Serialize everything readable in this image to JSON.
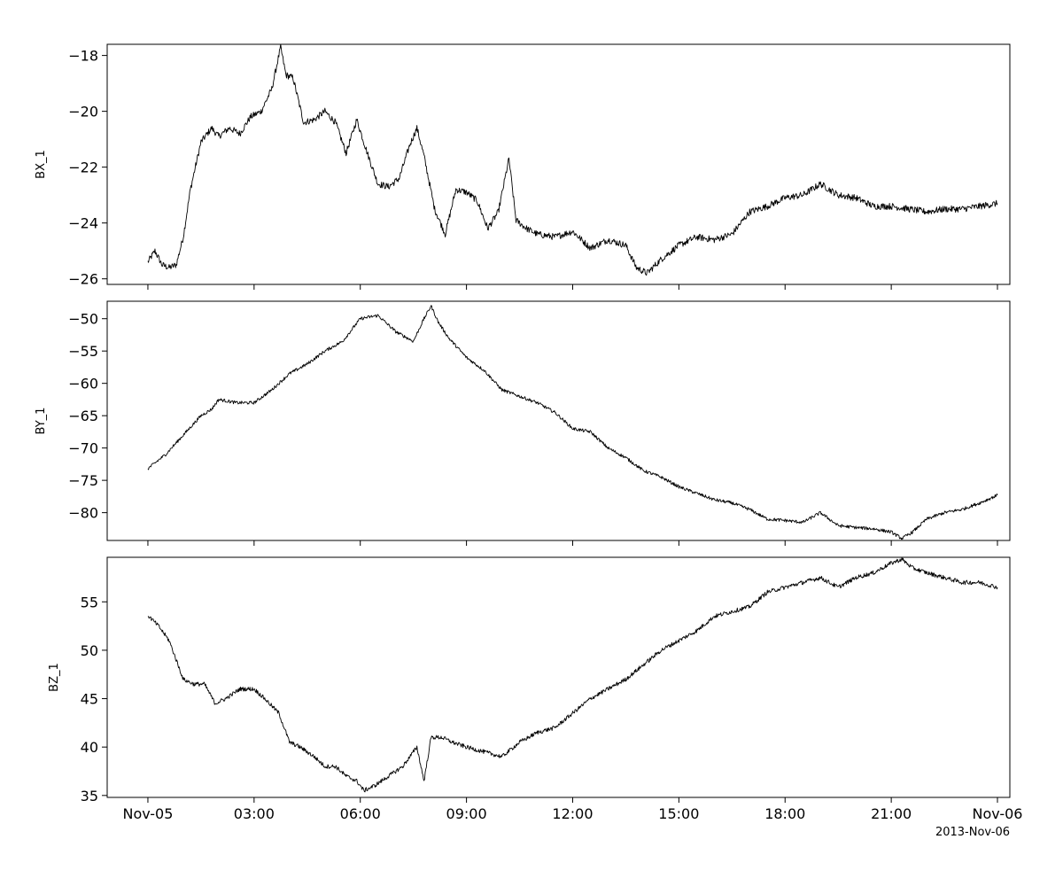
{
  "chart_data": [
    {
      "type": "line",
      "ylabel": "BX_1",
      "ylim": [
        -26.2,
        -17.6
      ],
      "yticks": [
        -26,
        -24,
        -22,
        -20,
        -18
      ],
      "series": [
        {
          "x": [
            0.0,
            0.2,
            0.4,
            0.6,
            0.8,
            1.0,
            1.2,
            1.5,
            1.8,
            2.0,
            2.3,
            2.6,
            2.9,
            3.2,
            3.5,
            3.75,
            3.9,
            4.1,
            4.4,
            4.7,
            5.0,
            5.3,
            5.6,
            5.9,
            6.2,
            6.5,
            6.8,
            7.1,
            7.4,
            7.6,
            7.8,
            8.1,
            8.4,
            8.7,
            9.0,
            9.3,
            9.6,
            9.9,
            10.2,
            10.4,
            10.7,
            11.0,
            11.5,
            12.0,
            12.5,
            13.0,
            13.5,
            13.8,
            14.1,
            14.5,
            15.0,
            15.5,
            16.0,
            16.5,
            17.0,
            17.5,
            18.0,
            18.5,
            19.0,
            19.5,
            20.0,
            20.5,
            21.0,
            21.5,
            22.0,
            22.5,
            23.0,
            23.5,
            24.0
          ],
          "y": [
            -25.4,
            -25.0,
            -25.5,
            -25.6,
            -25.5,
            -24.5,
            -22.8,
            -21.1,
            -20.6,
            -20.9,
            -20.6,
            -20.8,
            -20.2,
            -20.0,
            -19.2,
            -17.7,
            -18.7,
            -18.8,
            -20.4,
            -20.3,
            -20.0,
            -20.4,
            -21.5,
            -20.3,
            -21.5,
            -22.6,
            -22.7,
            -22.4,
            -21.2,
            -20.6,
            -21.6,
            -23.5,
            -24.4,
            -22.8,
            -22.9,
            -23.2,
            -24.2,
            -23.6,
            -21.7,
            -23.9,
            -24.2,
            -24.4,
            -24.5,
            -24.3,
            -24.9,
            -24.6,
            -24.8,
            -25.6,
            -25.8,
            -25.3,
            -24.8,
            -24.5,
            -24.6,
            -24.4,
            -23.6,
            -23.4,
            -23.1,
            -23.0,
            -22.6,
            -23.0,
            -23.1,
            -23.4,
            -23.4,
            -23.5,
            -23.6,
            -23.5,
            -23.5,
            -23.4,
            -23.3
          ]
        }
      ]
    },
    {
      "type": "line",
      "ylabel": "BY_1",
      "ylim": [
        -84.3,
        -47.3
      ],
      "yticks": [
        -80,
        -75,
        -70,
        -65,
        -60,
        -55,
        -50
      ],
      "series": [
        {
          "x": [
            0.0,
            0.5,
            1.0,
            1.5,
            1.8,
            2.0,
            2.5,
            3.0,
            3.5,
            4.0,
            4.5,
            5.0,
            5.5,
            6.0,
            6.5,
            7.0,
            7.5,
            7.8,
            8.0,
            8.2,
            8.5,
            9.0,
            9.5,
            10.0,
            10.5,
            11.0,
            11.5,
            12.0,
            12.5,
            13.0,
            13.5,
            14.0,
            14.5,
            15.0,
            15.5,
            16.0,
            16.5,
            17.0,
            17.5,
            18.0,
            18.5,
            19.0,
            19.5,
            20.0,
            20.5,
            21.0,
            21.3,
            21.6,
            22.0,
            22.5,
            23.0,
            23.5,
            24.0
          ],
          "y": [
            -73.2,
            -71.0,
            -68.0,
            -65.0,
            -64.0,
            -62.5,
            -63.0,
            -63.0,
            -61.0,
            -58.5,
            -57.0,
            -55.0,
            -53.5,
            -50.0,
            -49.5,
            -52.0,
            -53.5,
            -50.0,
            -48.0,
            -50.5,
            -53.0,
            -56.0,
            -58.0,
            -61.0,
            -62.0,
            -63.0,
            -64.5,
            -67.0,
            -67.5,
            -70.0,
            -71.5,
            -73.5,
            -74.5,
            -76.0,
            -77.0,
            -78.0,
            -78.5,
            -79.5,
            -81.0,
            -81.2,
            -81.5,
            -80.0,
            -82.0,
            -82.3,
            -82.5,
            -83.0,
            -84.0,
            -83.0,
            -81.0,
            -80.0,
            -79.5,
            -78.5,
            -77.3
          ]
        }
      ]
    },
    {
      "type": "line",
      "ylabel": "BZ_1",
      "ylim": [
        34.8,
        59.6
      ],
      "yticks": [
        35,
        40,
        45,
        50,
        55
      ],
      "series": [
        {
          "x": [
            0.0,
            0.3,
            0.6,
            0.8,
            1.0,
            1.3,
            1.6,
            1.9,
            2.2,
            2.6,
            3.0,
            3.3,
            3.7,
            4.0,
            4.3,
            4.7,
            5.0,
            5.3,
            5.6,
            5.9,
            6.1,
            6.4,
            6.8,
            7.2,
            7.6,
            7.8,
            8.0,
            8.3,
            8.6,
            9.0,
            9.5,
            10.0,
            10.5,
            11.0,
            11.5,
            12.0,
            12.5,
            13.0,
            13.5,
            14.0,
            14.5,
            15.0,
            15.5,
            16.0,
            16.5,
            17.0,
            17.5,
            18.0,
            18.5,
            19.0,
            19.5,
            20.0,
            20.5,
            21.0,
            21.3,
            21.6,
            22.0,
            22.5,
            23.0,
            23.5,
            24.0
          ],
          "y": [
            53.6,
            52.5,
            51.0,
            49.0,
            47.0,
            46.5,
            46.5,
            44.5,
            45.0,
            46.0,
            46.0,
            45.0,
            43.5,
            40.5,
            40.0,
            39.0,
            38.0,
            38.0,
            37.0,
            36.5,
            35.5,
            36.0,
            37.0,
            38.0,
            40.0,
            36.5,
            41.0,
            41.0,
            40.5,
            40.0,
            39.5,
            39.0,
            40.5,
            41.5,
            42.0,
            43.5,
            45.0,
            46.0,
            47.0,
            48.5,
            50.0,
            51.0,
            52.0,
            53.5,
            54.0,
            54.5,
            56.0,
            56.5,
            57.0,
            57.5,
            56.5,
            57.5,
            58.0,
            59.0,
            59.4,
            58.5,
            58.0,
            57.5,
            57.0,
            57.0,
            56.5
          ]
        }
      ]
    }
  ],
  "xaxis": {
    "range": [
      -1.15,
      24.35
    ],
    "ticks": [
      0,
      3,
      6,
      9,
      12,
      15,
      18,
      21,
      24
    ],
    "tick_labels": [
      "Nov-05",
      "03:00",
      "06:00",
      "09:00",
      "12:00",
      "15:00",
      "18:00",
      "21:00",
      "Nov-06"
    ],
    "date_label": "2013-Nov-06"
  },
  "colors": {
    "line": "#000000",
    "frame": "#000000",
    "background": "#ffffff"
  }
}
